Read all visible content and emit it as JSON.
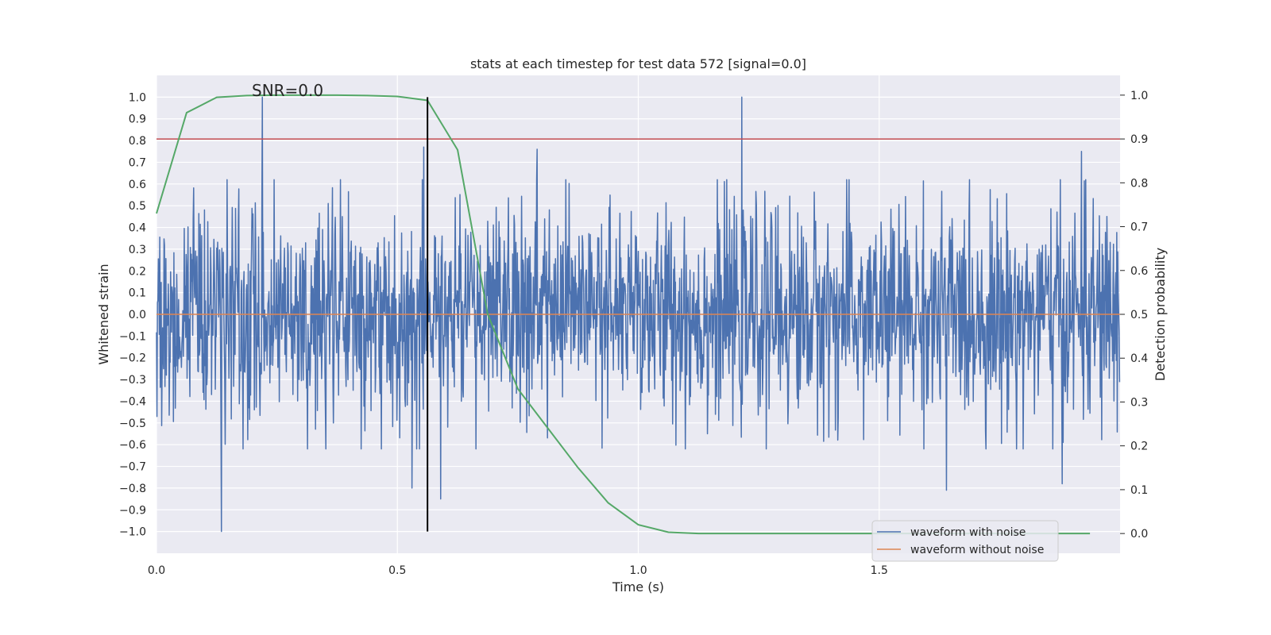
{
  "chart_data": {
    "type": "line",
    "title": "stats at each timestep for test data 572 [signal=0.0]",
    "annotation": "SNR=0.0",
    "xlabel": "Time (s)",
    "ylabel": "Whitened strain",
    "y2label": "Detection probability",
    "xlim": [
      0.0,
      2.0
    ],
    "ylim": [
      -1.1,
      1.1
    ],
    "y2lim": [
      -0.045,
      1.045
    ],
    "x_ticks": [
      "0.0",
      "0.5",
      "1.0",
      "1.5"
    ],
    "y_ticks": [
      "1.0",
      "0.9",
      "0.8",
      "0.7",
      "0.6",
      "0.5",
      "0.4",
      "0.3",
      "0.2",
      "0.1",
      "0.0",
      "−0.1",
      "−0.2",
      "−0.3",
      "−0.4",
      "−0.5",
      "−0.6",
      "−0.7",
      "−0.8",
      "−0.9",
      "−1.0"
    ],
    "y2_ticks": [
      "1.0",
      "0.9",
      "0.8",
      "0.7",
      "0.6",
      "0.5",
      "0.4",
      "0.3",
      "0.2",
      "0.1",
      "0.0"
    ],
    "threshold": {
      "value": 0.9,
      "axis": "y2",
      "color": "#c44e52"
    },
    "marker_line": {
      "x": 0.5625,
      "y_range": [
        -1.0,
        1.0
      ],
      "color": "#000000"
    },
    "colors": {
      "noisy": "#4c72b0",
      "clean": "#dd8452",
      "probability": "#55a868",
      "background": "#eaeaf2",
      "grid": "#ffffff"
    },
    "series": [
      {
        "name": "waveform with noise",
        "axis": "y",
        "n_samples": 2048,
        "duration": 2.0,
        "amplitude_range": [
          -1.0,
          1.0
        ],
        "peaks": [
          {
            "t": 0.22,
            "v": 1.0
          },
          {
            "t": 0.135,
            "v": -1.0
          },
          {
            "t": 1.215,
            "v": 1.0
          },
          {
            "t": 0.555,
            "v": 0.77
          },
          {
            "t": 0.79,
            "v": 0.76
          },
          {
            "t": 1.92,
            "v": 0.75
          },
          {
            "t": 0.59,
            "v": -0.85
          },
          {
            "t": 0.53,
            "v": -0.8
          },
          {
            "t": 1.64,
            "v": -0.81
          },
          {
            "t": 1.88,
            "v": -0.78
          }
        ]
      },
      {
        "name": "waveform without noise",
        "axis": "y",
        "x": [
          0.0,
          2.0
        ],
        "values": [
          0.0,
          0.0
        ]
      },
      {
        "name": "detection probability",
        "axis": "y2",
        "x": [
          0.0,
          0.0625,
          0.125,
          0.1875,
          0.25,
          0.3125,
          0.375,
          0.4375,
          0.5,
          0.5625,
          0.625,
          0.6875,
          0.75,
          0.8125,
          0.875,
          0.9375,
          1.0,
          1.0625,
          1.125,
          1.1875,
          1.25,
          1.5,
          1.75,
          1.9375
        ],
        "values": [
          0.73,
          0.96,
          0.995,
          0.999,
          1.0,
          1.0,
          1.0,
          0.999,
          0.997,
          0.988,
          0.875,
          0.5,
          0.33,
          0.24,
          0.15,
          0.07,
          0.02,
          0.003,
          0.0,
          0.0,
          0.0,
          0.0,
          0.0,
          0.0
        ]
      }
    ],
    "legend": {
      "position": "lower-right",
      "entries": [
        {
          "label": "waveform with noise",
          "color": "#4c72b0"
        },
        {
          "label": "waveform without noise",
          "color": "#dd8452"
        }
      ]
    }
  }
}
